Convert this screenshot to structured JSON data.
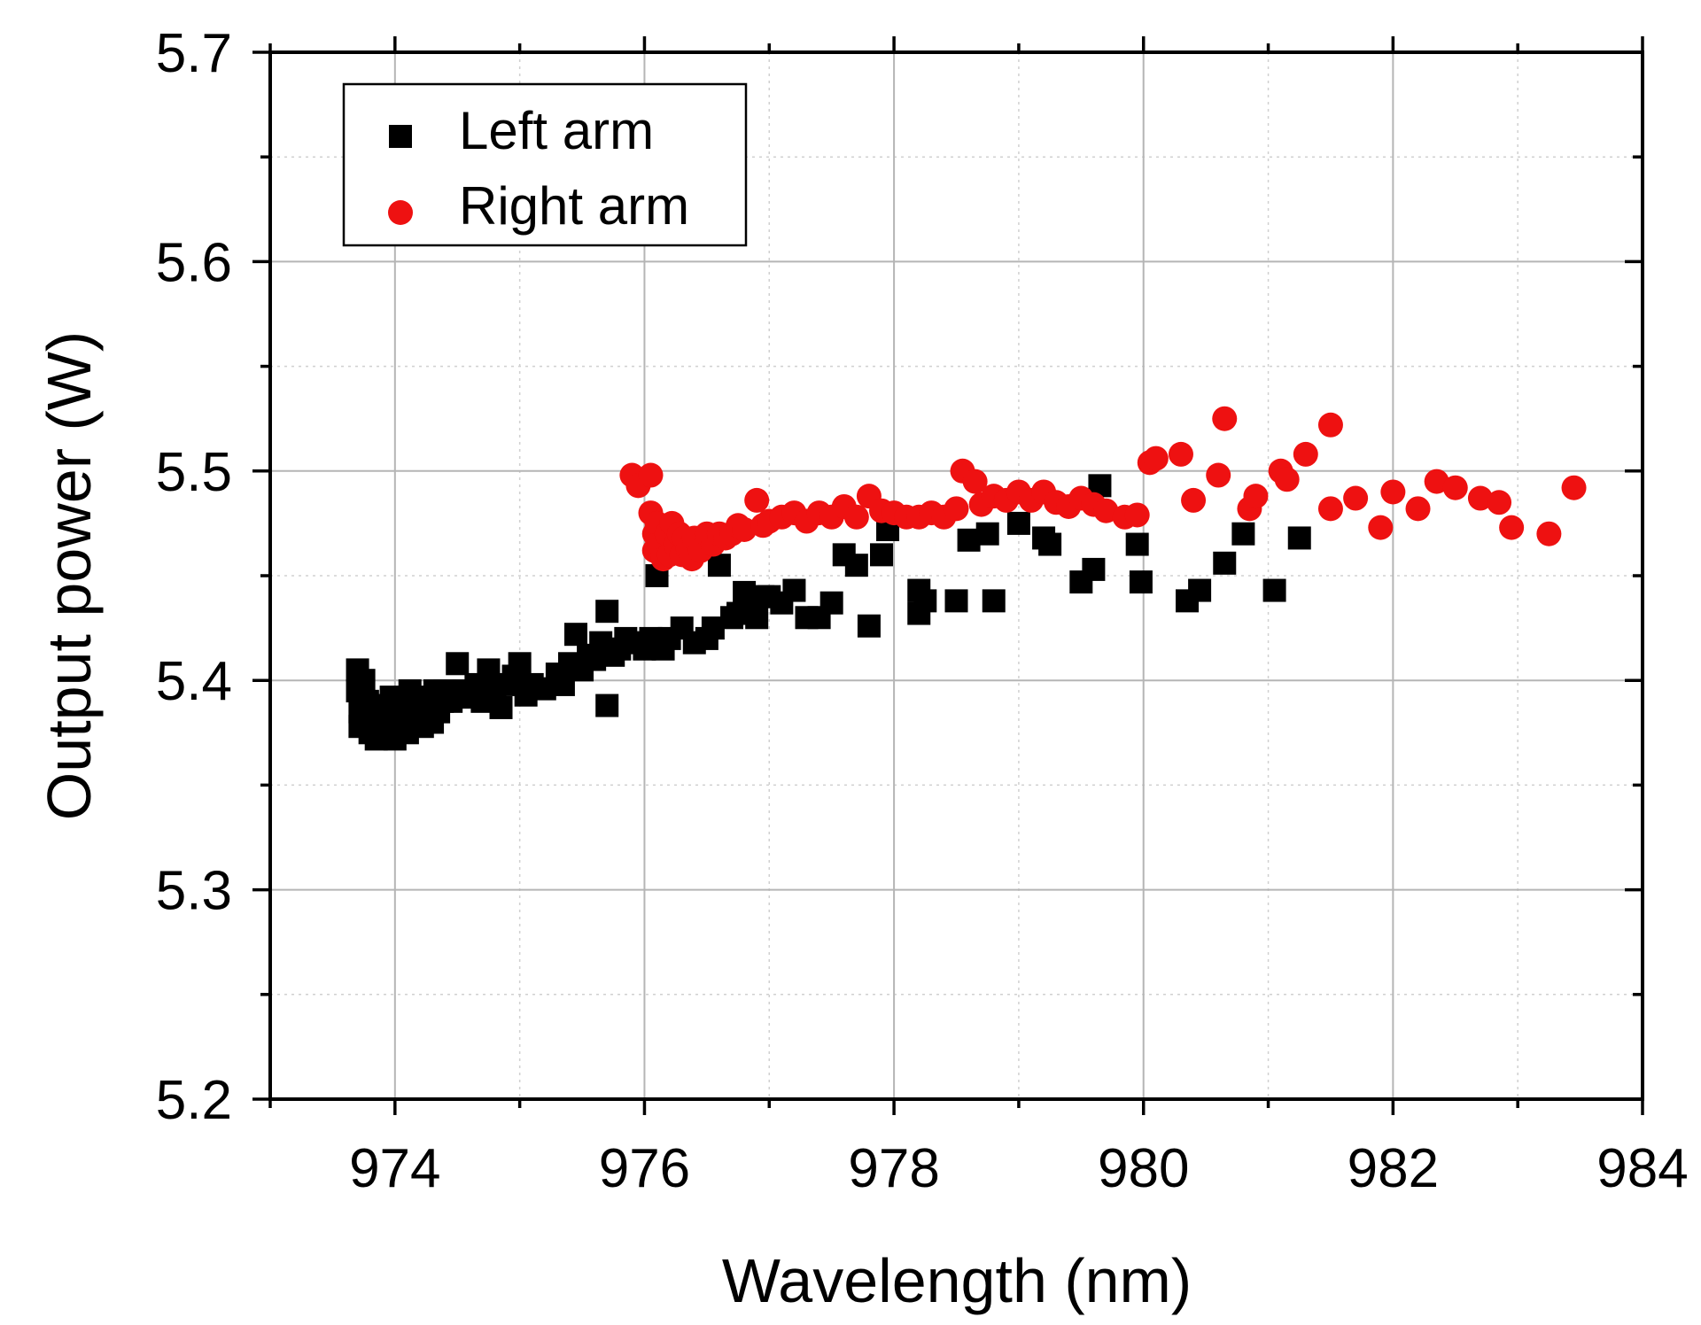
{
  "chart_data": {
    "type": "scatter",
    "title": "",
    "xlabel": "Wavelength (nm)",
    "ylabel": "Output power (W)",
    "xlim": [
      973,
      984
    ],
    "ylim": [
      5.2,
      5.7
    ],
    "x_ticks": [
      974,
      976,
      978,
      980,
      982,
      984
    ],
    "x_tick_labels": [
      "974",
      "976",
      "978",
      "980",
      "982",
      "984"
    ],
    "y_ticks": [
      5.2,
      5.3,
      5.4,
      5.5,
      5.6,
      5.7
    ],
    "y_tick_labels": [
      "5.2",
      "5.3",
      "5.4",
      "5.5",
      "5.6",
      "5.7"
    ],
    "grid": true,
    "legend_position": "top-left",
    "series": [
      {
        "name": "Left arm",
        "marker": "square",
        "color": "#000000",
        "points": [
          [
            973.7,
            5.405
          ],
          [
            973.7,
            5.395
          ],
          [
            973.72,
            5.385
          ],
          [
            973.72,
            5.378
          ],
          [
            973.75,
            5.4
          ],
          [
            973.78,
            5.39
          ],
          [
            973.8,
            5.375
          ],
          [
            973.82,
            5.385
          ],
          [
            973.85,
            5.372
          ],
          [
            973.88,
            5.38
          ],
          [
            973.9,
            5.388
          ],
          [
            973.92,
            5.373
          ],
          [
            973.95,
            5.38
          ],
          [
            973.97,
            5.392
          ],
          [
            974.0,
            5.372
          ],
          [
            974.02,
            5.385
          ],
          [
            974.05,
            5.378
          ],
          [
            974.08,
            5.39
          ],
          [
            974.1,
            5.375
          ],
          [
            974.12,
            5.395
          ],
          [
            974.15,
            5.38
          ],
          [
            974.18,
            5.386
          ],
          [
            974.2,
            5.392
          ],
          [
            974.22,
            5.378
          ],
          [
            974.25,
            5.385
          ],
          [
            974.28,
            5.39
          ],
          [
            974.3,
            5.38
          ],
          [
            974.32,
            5.395
          ],
          [
            974.35,
            5.385
          ],
          [
            974.38,
            5.39
          ],
          [
            974.4,
            5.395
          ],
          [
            974.45,
            5.39
          ],
          [
            974.5,
            5.408
          ],
          [
            974.55,
            5.395
          ],
          [
            974.6,
            5.392
          ],
          [
            974.65,
            5.398
          ],
          [
            974.7,
            5.39
          ],
          [
            974.75,
            5.405
          ],
          [
            974.8,
            5.395
          ],
          [
            974.85,
            5.387
          ],
          [
            974.9,
            5.398
          ],
          [
            974.95,
            5.402
          ],
          [
            975.0,
            5.408
          ],
          [
            975.05,
            5.393
          ],
          [
            975.1,
            5.398
          ],
          [
            975.2,
            5.396
          ],
          [
            975.3,
            5.403
          ],
          [
            975.35,
            5.398
          ],
          [
            975.4,
            5.408
          ],
          [
            975.45,
            5.422
          ],
          [
            975.5,
            5.405
          ],
          [
            975.55,
            5.412
          ],
          [
            975.6,
            5.41
          ],
          [
            975.65,
            5.418
          ],
          [
            975.7,
            5.433
          ],
          [
            975.7,
            5.388
          ],
          [
            975.75,
            5.412
          ],
          [
            975.8,
            5.415
          ],
          [
            975.85,
            5.42
          ],
          [
            975.9,
            5.418
          ],
          [
            976.0,
            5.415
          ],
          [
            976.05,
            5.42
          ],
          [
            976.1,
            5.45
          ],
          [
            976.15,
            5.415
          ],
          [
            976.2,
            5.42
          ],
          [
            976.3,
            5.425
          ],
          [
            976.4,
            5.418
          ],
          [
            976.5,
            5.42
          ],
          [
            976.55,
            5.425
          ],
          [
            976.6,
            5.455
          ],
          [
            976.7,
            5.43
          ],
          [
            976.75,
            5.432
          ],
          [
            976.8,
            5.442
          ],
          [
            976.85,
            5.435
          ],
          [
            976.9,
            5.43
          ],
          [
            976.95,
            5.44
          ],
          [
            977.0,
            5.44
          ],
          [
            977.1,
            5.437
          ],
          [
            977.2,
            5.443
          ],
          [
            977.3,
            5.43
          ],
          [
            977.4,
            5.43
          ],
          [
            977.5,
            5.437
          ],
          [
            977.6,
            5.46
          ],
          [
            977.7,
            5.455
          ],
          [
            977.8,
            5.426
          ],
          [
            977.9,
            5.46
          ],
          [
            977.95,
            5.472
          ],
          [
            978.2,
            5.443
          ],
          [
            978.2,
            5.432
          ],
          [
            978.25,
            5.438
          ],
          [
            978.5,
            5.438
          ],
          [
            978.6,
            5.467
          ],
          [
            978.75,
            5.47
          ],
          [
            978.8,
            5.438
          ],
          [
            979.0,
            5.475
          ],
          [
            979.2,
            5.468
          ],
          [
            979.25,
            5.465
          ],
          [
            979.5,
            5.447
          ],
          [
            979.6,
            5.453
          ],
          [
            979.65,
            5.493
          ],
          [
            979.95,
            5.465
          ],
          [
            979.98,
            5.447
          ],
          [
            980.35,
            5.438
          ],
          [
            980.45,
            5.443
          ],
          [
            980.65,
            5.456
          ],
          [
            980.8,
            5.47
          ],
          [
            981.05,
            5.443
          ],
          [
            981.25,
            5.468
          ]
        ]
      },
      {
        "name": "Right arm",
        "marker": "circle",
        "color": "#ee1111",
        "points": [
          [
            975.9,
            5.498
          ],
          [
            975.95,
            5.493
          ],
          [
            976.05,
            5.498
          ],
          [
            976.05,
            5.48
          ],
          [
            976.08,
            5.47
          ],
          [
            976.08,
            5.462
          ],
          [
            976.1,
            5.475
          ],
          [
            976.12,
            5.465
          ],
          [
            976.15,
            5.458
          ],
          [
            976.18,
            5.47
          ],
          [
            976.2,
            5.46
          ],
          [
            976.22,
            5.475
          ],
          [
            976.25,
            5.465
          ],
          [
            976.28,
            5.47
          ],
          [
            976.3,
            5.46
          ],
          [
            976.32,
            5.468
          ],
          [
            976.35,
            5.463
          ],
          [
            976.38,
            5.458
          ],
          [
            976.4,
            5.468
          ],
          [
            976.45,
            5.462
          ],
          [
            976.5,
            5.47
          ],
          [
            976.55,
            5.465
          ],
          [
            976.6,
            5.47
          ],
          [
            976.65,
            5.468
          ],
          [
            976.7,
            5.47
          ],
          [
            976.75,
            5.474
          ],
          [
            976.8,
            5.472
          ],
          [
            976.9,
            5.486
          ],
          [
            976.95,
            5.474
          ],
          [
            977.0,
            5.476
          ],
          [
            977.1,
            5.478
          ],
          [
            977.2,
            5.48
          ],
          [
            977.3,
            5.476
          ],
          [
            977.4,
            5.48
          ],
          [
            977.5,
            5.478
          ],
          [
            977.6,
            5.483
          ],
          [
            977.7,
            5.478
          ],
          [
            977.8,
            5.488
          ],
          [
            977.9,
            5.481
          ],
          [
            978.0,
            5.48
          ],
          [
            978.1,
            5.478
          ],
          [
            978.2,
            5.478
          ],
          [
            978.3,
            5.48
          ],
          [
            978.4,
            5.478
          ],
          [
            978.5,
            5.482
          ],
          [
            978.55,
            5.5
          ],
          [
            978.65,
            5.495
          ],
          [
            978.7,
            5.484
          ],
          [
            978.8,
            5.488
          ],
          [
            978.9,
            5.486
          ],
          [
            979.0,
            5.49
          ],
          [
            979.1,
            5.486
          ],
          [
            979.2,
            5.49
          ],
          [
            979.3,
            5.485
          ],
          [
            979.4,
            5.483
          ],
          [
            979.5,
            5.487
          ],
          [
            979.6,
            5.484
          ],
          [
            979.7,
            5.481
          ],
          [
            979.85,
            5.478
          ],
          [
            979.95,
            5.479
          ],
          [
            980.05,
            5.504
          ],
          [
            980.1,
            5.506
          ],
          [
            980.3,
            5.508
          ],
          [
            980.4,
            5.486
          ],
          [
            980.6,
            5.498
          ],
          [
            980.65,
            5.525
          ],
          [
            980.85,
            5.482
          ],
          [
            980.9,
            5.488
          ],
          [
            981.1,
            5.5
          ],
          [
            981.15,
            5.496
          ],
          [
            981.3,
            5.508
          ],
          [
            981.5,
            5.482
          ],
          [
            981.5,
            5.522
          ],
          [
            981.7,
            5.487
          ],
          [
            981.9,
            5.473
          ],
          [
            982.0,
            5.49
          ],
          [
            982.2,
            5.482
          ],
          [
            982.35,
            5.495
          ],
          [
            982.5,
            5.492
          ],
          [
            982.7,
            5.487
          ],
          [
            982.85,
            5.485
          ],
          [
            982.95,
            5.473
          ],
          [
            983.25,
            5.47
          ],
          [
            983.45,
            5.492
          ]
        ]
      }
    ]
  }
}
